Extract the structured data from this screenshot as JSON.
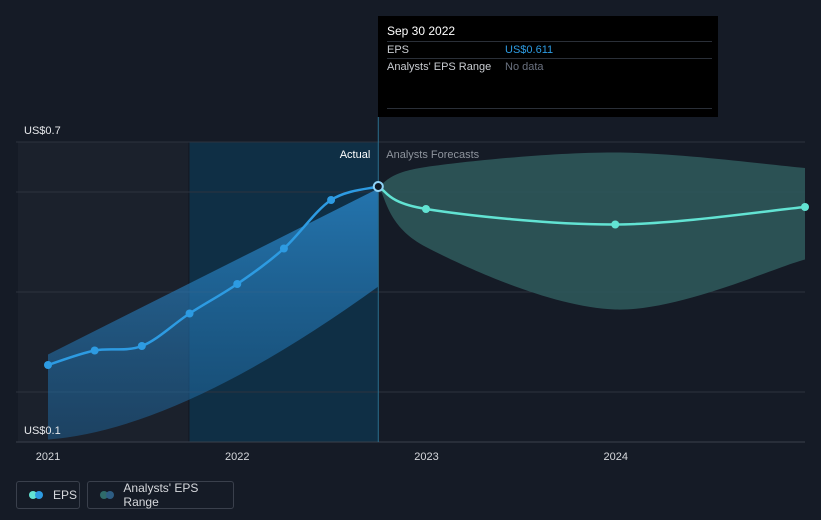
{
  "chart_data": {
    "type": "line",
    "y_axis_labels": [
      "US$0.7",
      "US$0.1"
    ],
    "ylim": [
      0.1,
      0.7
    ],
    "xlim": [
      "2021-01-01",
      "2024-12-31"
    ],
    "x_ticks": [
      {
        "label": "2021",
        "date": "2021-01-01"
      },
      {
        "label": "2022",
        "date": "2022-01-01"
      },
      {
        "label": "2023",
        "date": "2023-01-01"
      },
      {
        "label": "2024",
        "date": "2024-01-01"
      }
    ],
    "gridlines": [
      0.7,
      0.6,
      0.4,
      0.2
    ],
    "section_labels": {
      "actual": "Actual",
      "forecast": "Analysts Forecasts"
    },
    "series": [
      {
        "name": "EPS",
        "kind": "actual",
        "color": "#2d9be2",
        "points": [
          {
            "x": "2021-01-01",
            "y": 0.254
          },
          {
            "x": "2021-04-01",
            "y": 0.283
          },
          {
            "x": "2021-07-01",
            "y": 0.292
          },
          {
            "x": "2021-10-01",
            "y": 0.357
          },
          {
            "x": "2022-01-01",
            "y": 0.416
          },
          {
            "x": "2022-04-01",
            "y": 0.487
          },
          {
            "x": "2022-07-01",
            "y": 0.584
          },
          {
            "x": "2022-09-30",
            "y": 0.611
          }
        ]
      },
      {
        "name": "EPS",
        "kind": "forecast",
        "color": "#62e3d3",
        "points": [
          {
            "x": "2022-09-30",
            "y": 0.611
          },
          {
            "x": "2022-12-31",
            "y": 0.566
          },
          {
            "x": "2023-12-31",
            "y": 0.535
          },
          {
            "x": "2024-12-31",
            "y": 0.57
          }
        ]
      }
    ],
    "actual_band": {
      "upper": [
        {
          "x": "2021-01-01",
          "y": 0.275
        },
        {
          "x": "2022-09-30",
          "y": 0.607
        }
      ],
      "lower": [
        {
          "x": "2021-01-01",
          "y": 0.105
        },
        {
          "x": "2022-09-30",
          "y": 0.411
        }
      ]
    },
    "forecast_range": {
      "upper": [
        {
          "x": "2022-09-30",
          "y": 0.611
        },
        {
          "x": "2022-12-31",
          "y": 0.65
        },
        {
          "x": "2023-12-31",
          "y": 0.679
        },
        {
          "x": "2024-12-31",
          "y": 0.648
        }
      ],
      "lower": [
        {
          "x": "2022-09-30",
          "y": 0.611
        },
        {
          "x": "2022-12-31",
          "y": 0.49
        },
        {
          "x": "2023-12-31",
          "y": 0.365
        },
        {
          "x": "2024-12-31",
          "y": 0.465
        }
      ]
    },
    "highlight": {
      "x": "2022-09-30"
    }
  },
  "tooltip": {
    "date": "Sep 30 2022",
    "rows": [
      {
        "label": "EPS",
        "value": "US$0.611",
        "color": "#2d9be2"
      },
      {
        "label": "Analysts' EPS Range",
        "value": "No data",
        "color": "#6b7280"
      }
    ]
  },
  "legend": {
    "eps_label": "EPS",
    "eps_colors": [
      "#62e3d3",
      "#2d9be2"
    ],
    "range_label": "Analysts' EPS Range",
    "range_colors": [
      "#2f6b6a",
      "#2d5d83"
    ]
  }
}
